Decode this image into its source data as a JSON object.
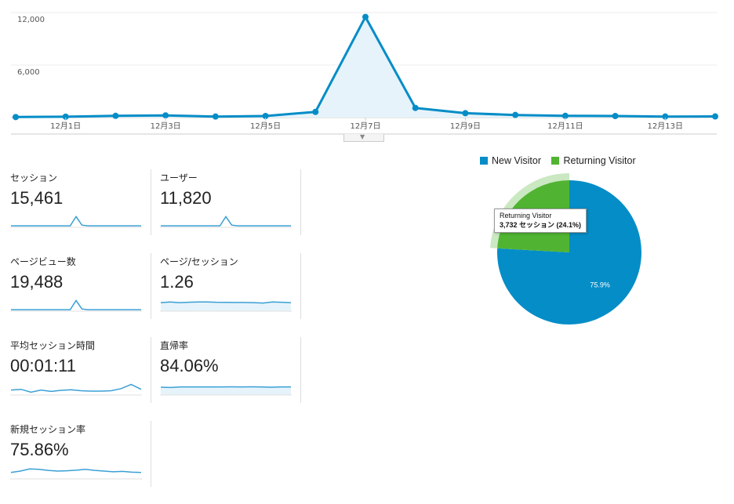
{
  "main_chart": {
    "y_ticks": [
      "12,000",
      "6,000"
    ],
    "x_tick_labels": [
      "12月1日",
      "12月3日",
      "12月5日",
      "12月7日",
      "12月9日",
      "12月11日",
      "12月13日"
    ],
    "values": [
      60,
      100,
      200,
      250,
      120,
      180,
      650,
      11500,
      1100,
      500,
      300,
      200,
      180,
      120,
      130
    ],
    "ylim": [
      0,
      12000
    ],
    "line_color": "#058dc7",
    "fill_color": "#e6f3fa"
  },
  "metrics": [
    {
      "label": "セッション",
      "value": "15,461",
      "spark": [
        5,
        5,
        5,
        5,
        5,
        5,
        5,
        5,
        5,
        5,
        5,
        70,
        10,
        5,
        5,
        5,
        5,
        5,
        5,
        5,
        5,
        5,
        5
      ],
      "fill": false
    },
    {
      "label": "ユーザー",
      "value": "11,820",
      "spark": [
        5,
        5,
        5,
        5,
        5,
        5,
        5,
        5,
        5,
        5,
        5,
        70,
        10,
        5,
        5,
        5,
        5,
        5,
        5,
        5,
        5,
        5,
        5
      ],
      "fill": false
    },
    {
      "label": "ページビュー数",
      "value": "19,488",
      "spark": [
        5,
        5,
        5,
        5,
        5,
        5,
        5,
        5,
        5,
        5,
        5,
        70,
        10,
        5,
        5,
        5,
        5,
        5,
        5,
        5,
        5,
        5,
        5
      ],
      "fill": false
    },
    {
      "label": "ページ/セッション",
      "value": "1.26",
      "spark": [
        55,
        60,
        55,
        58,
        60,
        60,
        58,
        57,
        56,
        56,
        55,
        52,
        60,
        58,
        55
      ],
      "fill": true
    },
    {
      "label": "平均セッション時間",
      "value": "00:01:11",
      "spark": [
        30,
        35,
        15,
        30,
        20,
        28,
        32,
        25,
        22,
        22,
        25,
        40,
        70,
        35
      ],
      "fill": false
    },
    {
      "label": "直帰率",
      "value": "84.06%",
      "spark": [
        50,
        48,
        52,
        52,
        52,
        52,
        52,
        53,
        52,
        53,
        52,
        50,
        52,
        52
      ],
      "fill": true
    },
    {
      "label": "新規セッション率",
      "value": "75.86%",
      "spark": [
        40,
        50,
        65,
        62,
        55,
        50,
        52,
        56,
        62,
        55,
        50,
        45,
        48,
        42,
        40
      ],
      "fill": false
    }
  ],
  "pie": {
    "legend": [
      {
        "name": "New Visitor",
        "color": "#058dc7"
      },
      {
        "name": "Returning Visitor",
        "color": "#50b432"
      }
    ],
    "slices": [
      {
        "name": "New Visitor",
        "percent": 75.9,
        "label": "75.9%"
      },
      {
        "name": "Returning Visitor",
        "percent": 24.1
      }
    ],
    "tooltip": {
      "title": "Returning Visitor",
      "value": "3,732 セッション (24.1%)"
    }
  }
}
